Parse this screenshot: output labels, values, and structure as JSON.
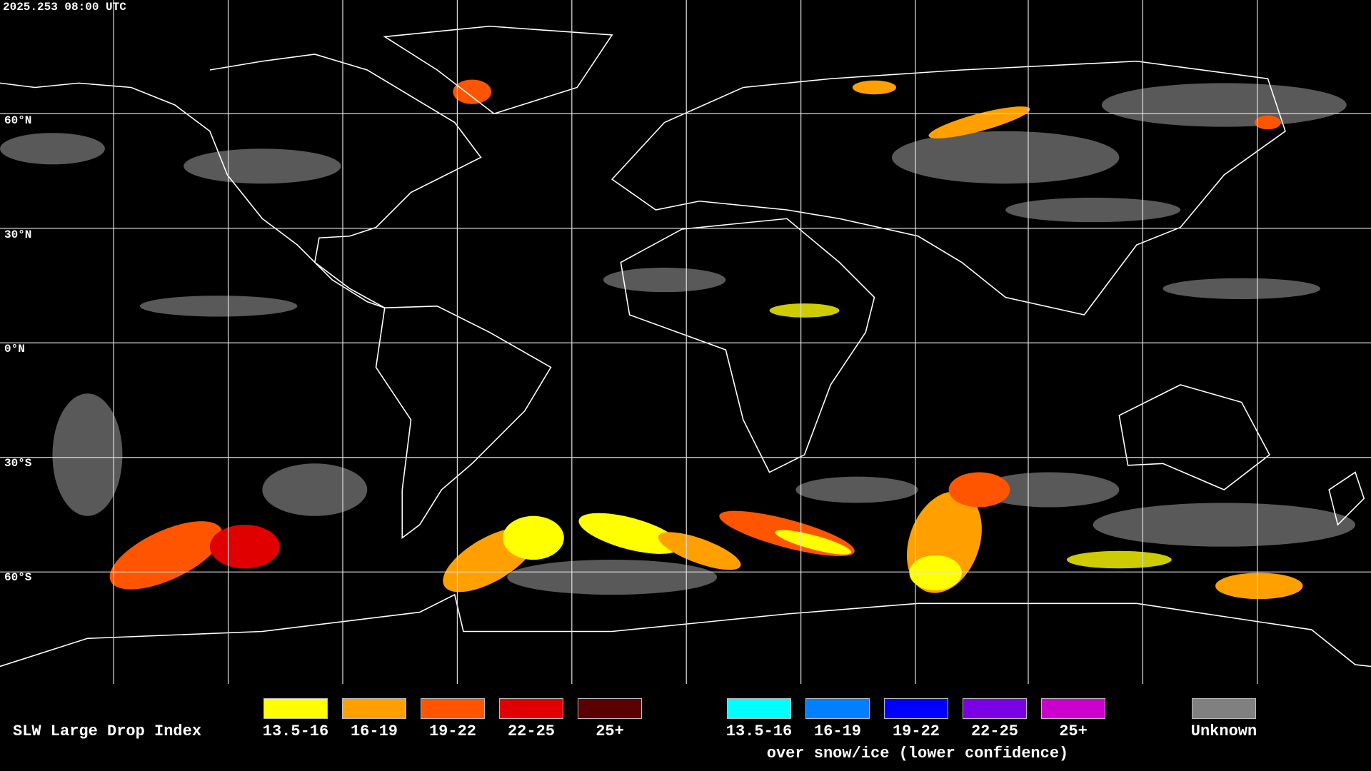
{
  "header": {
    "timestamp": "2025.253 08:00 UTC"
  },
  "lat_labels": [
    "60°N",
    "30°N",
    "0°N",
    "30°S",
    "60°S"
  ],
  "legend": {
    "title": "SLW Large Drop Index",
    "items": [
      {
        "label": "13.5-16",
        "color": "#ffff00"
      },
      {
        "label": "16-19",
        "color": "#ffa000"
      },
      {
        "label": "19-22",
        "color": "#ff5500"
      },
      {
        "label": "22-25",
        "color": "#e00000"
      },
      {
        "label": "25+",
        "color": "#5a0000"
      }
    ],
    "snow_items": [
      {
        "label": "13.5-16",
        "color": "#00ffff"
      },
      {
        "label": "16-19",
        "color": "#0080ff"
      },
      {
        "label": "19-22",
        "color": "#0000ff"
      },
      {
        "label": "22-25",
        "color": "#7a00e6"
      },
      {
        "label": "25+",
        "color": "#cc00cc"
      }
    ],
    "snow_caption": "over snow/ice (lower confidence)",
    "unknown": {
      "label": "Unknown",
      "color": "#808080"
    }
  }
}
